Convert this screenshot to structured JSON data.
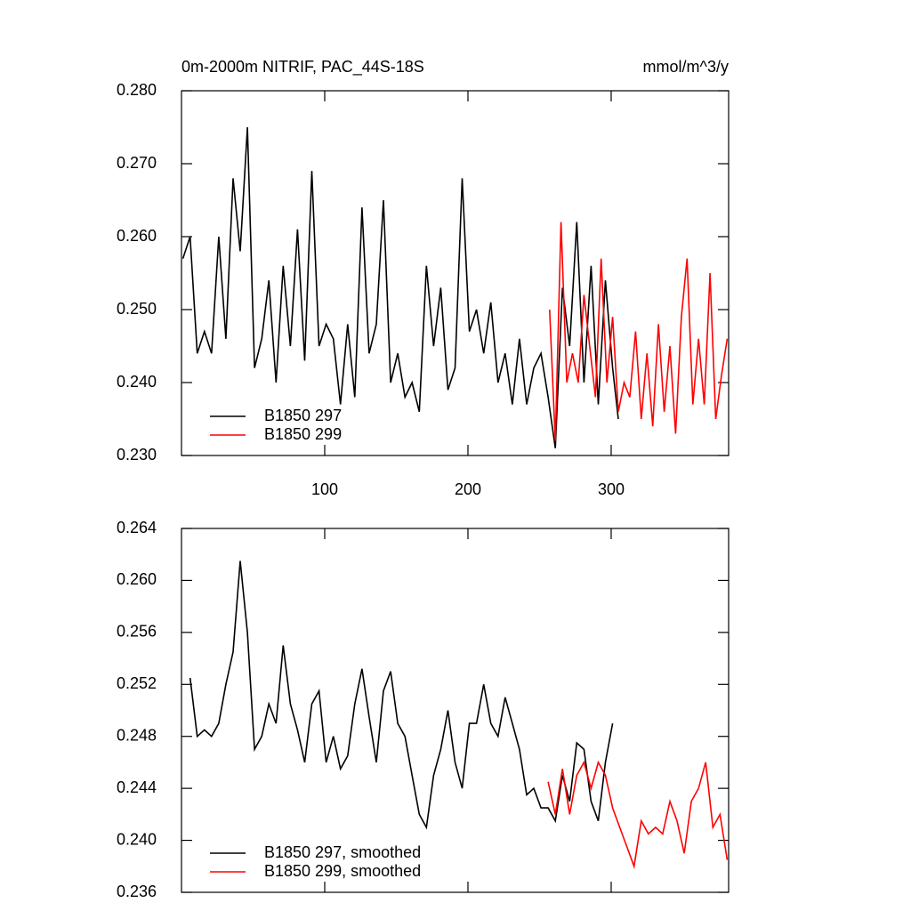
{
  "chart_data": [
    {
      "type": "line",
      "title": "0m-2000m NITRIF, PAC_44S-18S",
      "units": "mmol/m^3/y",
      "xlim": [
        0,
        382
      ],
      "xticks": [
        100,
        200,
        300
      ],
      "ylim": [
        0.23,
        0.28
      ],
      "yticks": [
        {
          "value": 0.23,
          "label": "0.230"
        },
        {
          "value": 0.24,
          "label": "0.240"
        },
        {
          "value": 0.25,
          "label": "0.250"
        },
        {
          "value": 0.26,
          "label": "0.260"
        },
        {
          "value": 0.27,
          "label": "0.270"
        },
        {
          "value": 0.28,
          "label": "0.280"
        }
      ],
      "legend": "lower left",
      "series": [
        {
          "name": "B1850 297",
          "color": "#000000",
          "x": [
            1,
            6,
            11,
            16,
            21,
            26,
            31,
            36,
            41,
            46,
            51,
            56,
            61,
            66,
            71,
            76,
            81,
            86,
            91,
            96,
            101,
            106,
            111,
            116,
            121,
            126,
            131,
            136,
            141,
            146,
            151,
            156,
            161,
            166,
            171,
            176,
            181,
            186,
            191,
            196,
            201,
            206,
            211,
            216,
            221,
            226,
            231,
            236,
            241,
            246,
            251,
            256,
            261,
            266,
            271,
            276,
            281,
            286,
            291,
            296,
            301,
            305
          ],
          "values": [
            0.257,
            0.26,
            0.244,
            0.247,
            0.244,
            0.26,
            0.246,
            0.268,
            0.258,
            0.275,
            0.242,
            0.246,
            0.254,
            0.24,
            0.256,
            0.245,
            0.261,
            0.243,
            0.269,
            0.245,
            0.248,
            0.246,
            0.237,
            0.248,
            0.238,
            0.264,
            0.244,
            0.248,
            0.265,
            0.24,
            0.244,
            0.238,
            0.24,
            0.236,
            0.256,
            0.245,
            0.253,
            0.239,
            0.242,
            0.268,
            0.247,
            0.25,
            0.244,
            0.251,
            0.24,
            0.244,
            0.237,
            0.246,
            0.237,
            0.242,
            0.244,
            0.238,
            0.231,
            0.253,
            0.245,
            0.262,
            0.24,
            0.256,
            0.237,
            0.254,
            0.242,
            0.235
          ]
        },
        {
          "name": "B1850 299",
          "color": "#ff0000",
          "x": [
            257,
            261,
            265,
            269,
            273,
            277,
            281,
            285,
            289,
            293,
            297,
            301,
            305,
            309,
            313,
            317,
            321,
            325,
            329,
            333,
            337,
            341,
            345,
            349,
            353,
            357,
            361,
            365,
            369,
            373,
            377,
            381
          ],
          "values": [
            0.25,
            0.232,
            0.262,
            0.24,
            0.244,
            0.24,
            0.252,
            0.245,
            0.238,
            0.257,
            0.24,
            0.249,
            0.236,
            0.24,
            0.238,
            0.247,
            0.235,
            0.244,
            0.234,
            0.248,
            0.236,
            0.245,
            0.233,
            0.249,
            0.257,
            0.237,
            0.246,
            0.237,
            0.255,
            0.235,
            0.241,
            0.246
          ]
        }
      ]
    },
    {
      "type": "line",
      "xlim": [
        0,
        382
      ],
      "xticks": [
        100,
        200,
        300
      ],
      "xtick_labels": false,
      "ylim": [
        0.236,
        0.264
      ],
      "yticks": [
        0.236,
        {
          "value": 0.24,
          "label": "0.240"
        },
        0.244,
        0.248,
        0.252,
        0.256,
        {
          "value": 0.26,
          "label": "0.260"
        },
        0.264
      ],
      "legend": "lower left",
      "series": [
        {
          "name": "B1850 297, smoothed",
          "color": "#000000",
          "x": [
            6,
            11,
            16,
            21,
            26,
            31,
            36,
            41,
            46,
            51,
            56,
            61,
            66,
            71,
            76,
            81,
            86,
            91,
            96,
            101,
            106,
            111,
            116,
            121,
            126,
            131,
            136,
            141,
            146,
            151,
            156,
            161,
            166,
            171,
            176,
            181,
            186,
            191,
            196,
            201,
            206,
            211,
            216,
            221,
            226,
            231,
            236,
            241,
            246,
            251,
            256,
            261,
            266,
            271,
            276,
            281,
            286,
            291,
            296,
            301
          ],
          "values": [
            0.2525,
            0.248,
            0.2485,
            0.248,
            0.249,
            0.252,
            0.2545,
            0.2615,
            0.256,
            0.247,
            0.248,
            0.2505,
            0.249,
            0.255,
            0.2505,
            0.2485,
            0.246,
            0.2505,
            0.2515,
            0.246,
            0.248,
            0.2455,
            0.2465,
            0.2505,
            0.2532,
            0.2495,
            0.246,
            0.2515,
            0.253,
            0.249,
            0.248,
            0.245,
            0.242,
            0.241,
            0.245,
            0.247,
            0.25,
            0.246,
            0.244,
            0.249,
            0.249,
            0.252,
            0.249,
            0.248,
            0.251,
            0.249,
            0.247,
            0.2435,
            0.244,
            0.2425,
            0.2425,
            0.2415,
            0.245,
            0.243,
            0.2475,
            0.247,
            0.243,
            0.2415,
            0.246,
            0.249
          ]
        },
        {
          "name": "B1850 299, smoothed",
          "color": "#ff0000",
          "x": [
            256,
            261,
            266,
            271,
            276,
            281,
            286,
            291,
            296,
            301,
            306,
            311,
            316,
            321,
            326,
            331,
            336,
            341,
            346,
            351,
            356,
            361,
            366,
            371,
            376,
            381
          ],
          "values": [
            0.2445,
            0.242,
            0.2455,
            0.242,
            0.245,
            0.246,
            0.244,
            0.246,
            0.245,
            0.2425,
            0.241,
            0.2395,
            0.238,
            0.2415,
            0.2405,
            0.241,
            0.2405,
            0.243,
            0.2415,
            0.239,
            0.243,
            0.244,
            0.246,
            0.241,
            0.242,
            0.2385
          ]
        }
      ]
    }
  ]
}
